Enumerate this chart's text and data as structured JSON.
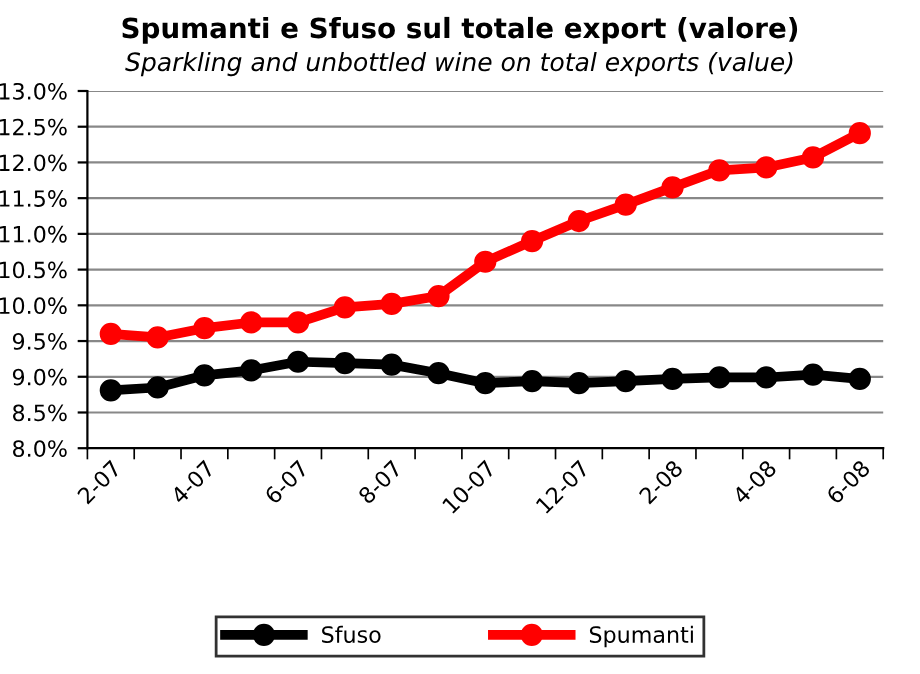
{
  "chart_data": {
    "type": "line",
    "title": "Spumanti e Sfuso sul totale export (valore)",
    "subtitle": "Sparkling and unbottled wine on total exports (value)",
    "categories": [
      "2-07",
      null,
      "4-07",
      null,
      "6-07",
      null,
      "8-07",
      null,
      "10-07",
      null,
      "12-07",
      null,
      "2-08",
      null,
      "4-08",
      null,
      "6-08"
    ],
    "series": [
      {
        "name": "Sfuso",
        "color": "#000000",
        "values": [
          8.81,
          8.85,
          9.02,
          9.09,
          9.21,
          9.19,
          9.17,
          9.05,
          8.91,
          8.94,
          8.91,
          8.94,
          8.97,
          8.99,
          8.99,
          9.03,
          8.97
        ]
      },
      {
        "name": "Spumanti",
        "color": "#ff0000",
        "values": [
          9.6,
          9.55,
          9.68,
          9.76,
          9.76,
          9.97,
          10.02,
          10.13,
          10.61,
          10.9,
          11.18,
          11.41,
          11.65,
          11.89,
          11.93,
          12.07,
          12.41
        ]
      }
    ],
    "ylim": [
      8.0,
      13.0
    ],
    "yticks": [
      {
        "value": 8.0,
        "label": "8.0%"
      },
      {
        "value": 8.5,
        "label": "8.5%"
      },
      {
        "value": 9.0,
        "label": "9.0%"
      },
      {
        "value": 9.5,
        "label": "9.5%"
      },
      {
        "value": 10.0,
        "label": "10.0%"
      },
      {
        "value": 10.5,
        "label": "10.5%"
      },
      {
        "value": 11.0,
        "label": "11.0%"
      },
      {
        "value": 11.5,
        "label": "11.5%"
      },
      {
        "value": 12.0,
        "label": "12.0%"
      },
      {
        "value": 12.5,
        "label": "12.5%"
      },
      {
        "value": 13.0,
        "label": "13.0%"
      }
    ],
    "grid": "y",
    "legend": "bottom",
    "marker": "circle",
    "line_style": "solid"
  }
}
